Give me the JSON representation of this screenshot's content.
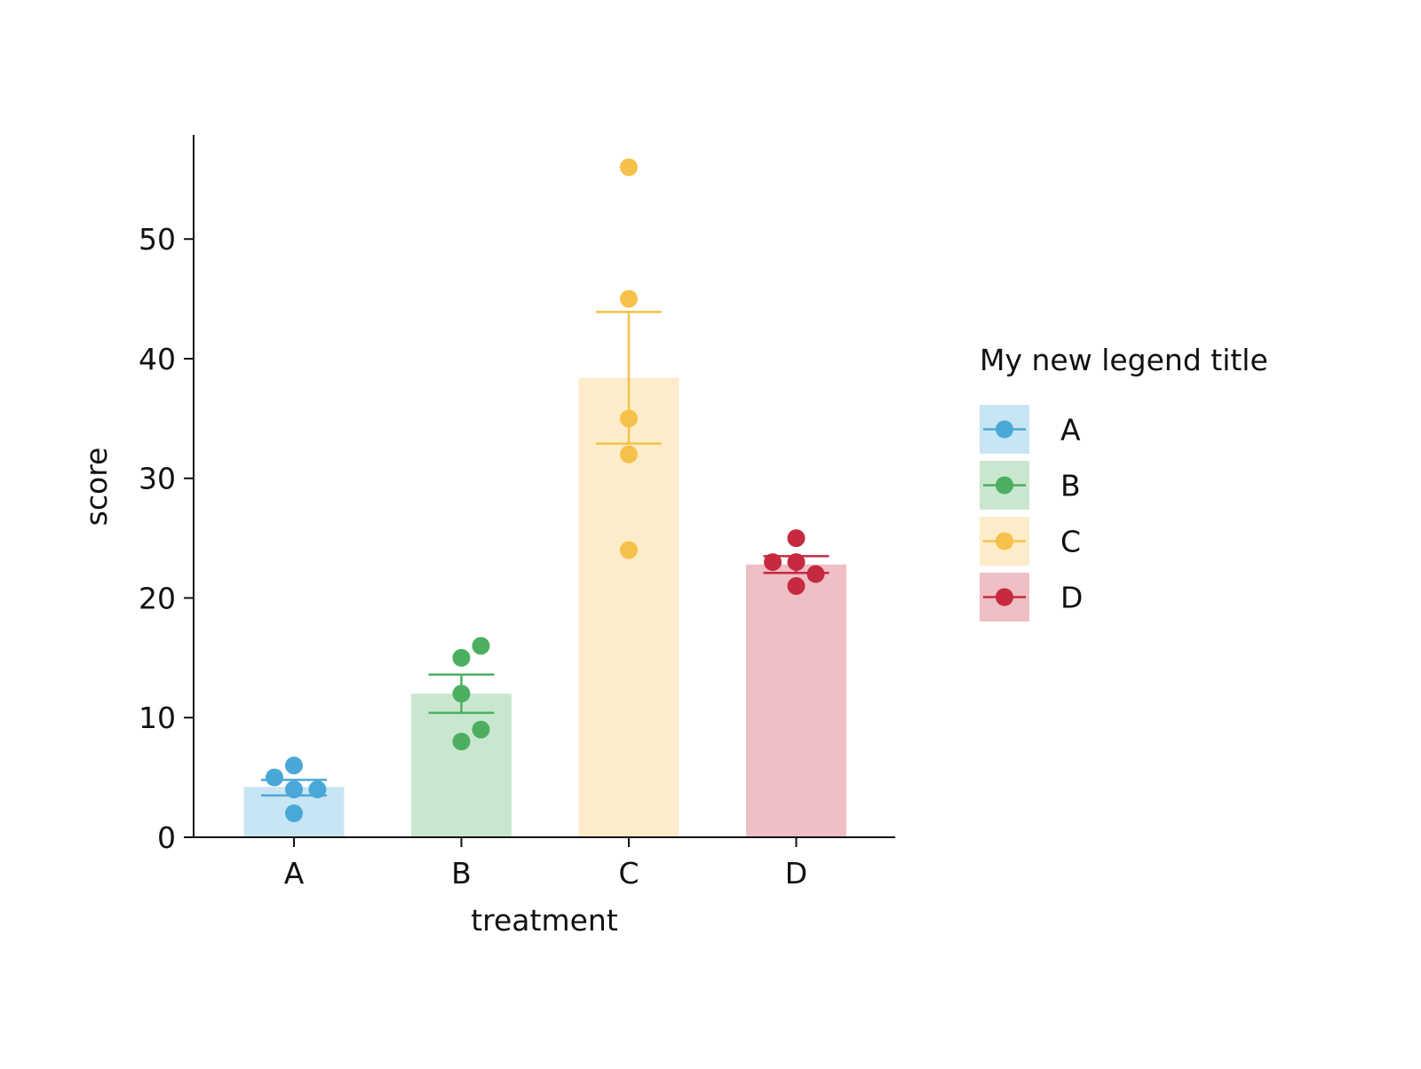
{
  "chart_data": {
    "type": "bar",
    "xlabel": "treatment",
    "ylabel": "score",
    "ylim": [
      0,
      58.7
    ],
    "yticks": [
      0,
      10,
      20,
      30,
      40,
      50
    ],
    "grid": false,
    "categories": [
      "A",
      "B",
      "C",
      "D"
    ],
    "colors": [
      "#4aa8d8",
      "#4caf60",
      "#f6c14b",
      "#c62a40"
    ],
    "bar_opacity": 0.3,
    "means": [
      4.2,
      12.0,
      38.4,
      22.8
    ],
    "errors": [
      {
        "low": 3.5,
        "high": 4.8
      },
      {
        "low": 10.4,
        "high": 13.6
      },
      {
        "low": 32.9,
        "high": 43.9
      },
      {
        "low": 22.1,
        "high": 23.5
      }
    ],
    "points": [
      [
        {
          "y": 6,
          "dx": 0
        },
        {
          "y": 5,
          "dx": -1
        },
        {
          "y": 4,
          "dx": 0
        },
        {
          "y": 4,
          "dx": 1.2
        },
        {
          "y": 2,
          "dx": 0
        }
      ],
      [
        {
          "y": 16,
          "dx": 1
        },
        {
          "y": 15,
          "dx": 0
        },
        {
          "y": 12,
          "dx": 0
        },
        {
          "y": 9,
          "dx": 1
        },
        {
          "y": 8,
          "dx": 0
        }
      ],
      [
        {
          "y": 56,
          "dx": 0
        },
        {
          "y": 45,
          "dx": 0
        },
        {
          "y": 35,
          "dx": 0
        },
        {
          "y": 32,
          "dx": 0
        },
        {
          "y": 24,
          "dx": 0
        }
      ],
      [
        {
          "y": 25,
          "dx": 0
        },
        {
          "y": 23,
          "dx": -1.2
        },
        {
          "y": 23,
          "dx": 0
        },
        {
          "y": 22,
          "dx": 1
        },
        {
          "y": 21,
          "dx": 0
        }
      ]
    ],
    "legend": {
      "title": "My new legend title",
      "placement": "right",
      "entries": [
        "A",
        "B",
        "C",
        "D"
      ]
    }
  }
}
